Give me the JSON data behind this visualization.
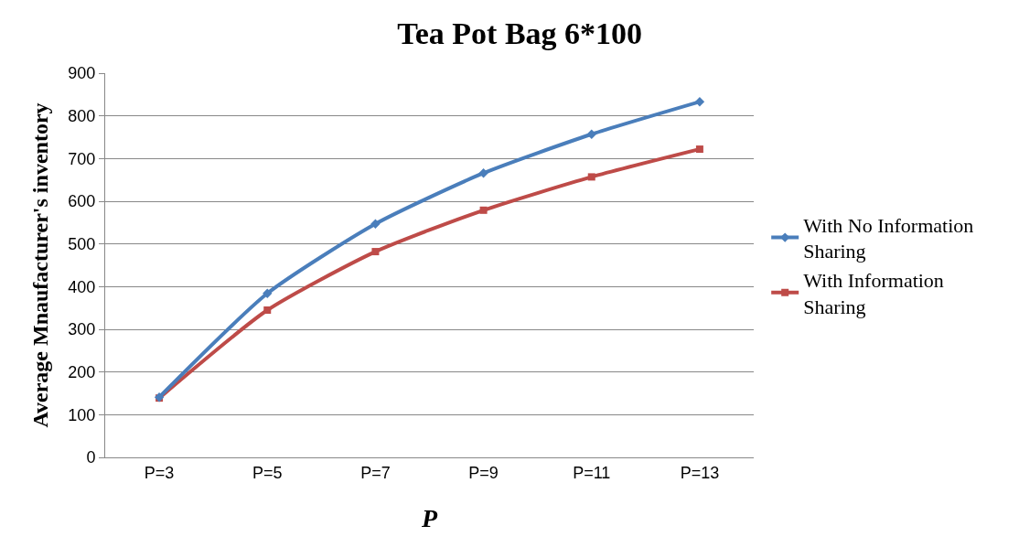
{
  "chart_data": {
    "type": "line",
    "title": "Tea Pot Bag 6*100",
    "xlabel": "P",
    "ylabel": "Average Mnaufacturer's inventory",
    "categories": [
      "P=3",
      "P=5",
      "P=7",
      "P=9",
      "P=11",
      "P=13"
    ],
    "series": [
      {
        "name": "With No Information Sharing",
        "color": "#4a7ebb",
        "marker": "diamond",
        "values": [
          141,
          384,
          547,
          666,
          757,
          833
        ]
      },
      {
        "name": "With Information Sharing",
        "color": "#be4b48",
        "marker": "square",
        "values": [
          139,
          345,
          482,
          579,
          657,
          722
        ]
      }
    ],
    "ylim": [
      0,
      900
    ],
    "yticks": [
      0,
      100,
      200,
      300,
      400,
      500,
      600,
      700,
      800,
      900
    ],
    "grid": "y",
    "legend": "right",
    "line_style": "solid"
  }
}
